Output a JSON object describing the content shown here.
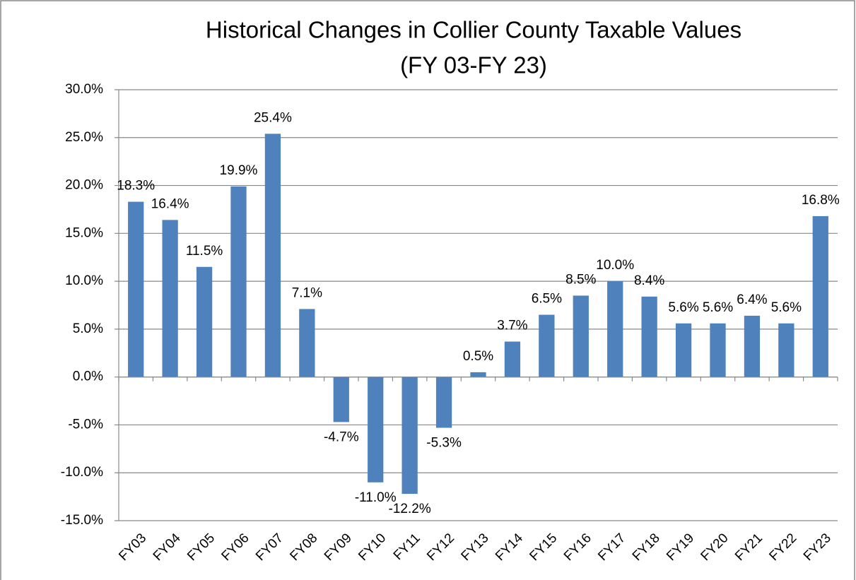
{
  "chart_data": {
    "type": "bar",
    "title": [
      "Historical Changes in Collier County Taxable Values",
      "(FY 03-FY 23)"
    ],
    "categories": [
      "FY03",
      "FY04",
      "FY05",
      "FY06",
      "FY07",
      "FY08",
      "FY09",
      "FY10",
      "FY11",
      "FY12",
      "FY13",
      "FY14",
      "FY15",
      "FY16",
      "FY17",
      "FY18",
      "FY19",
      "FY20",
      "FY21",
      "FY22",
      "FY23"
    ],
    "values": [
      18.3,
      16.4,
      11.5,
      19.9,
      25.4,
      7.1,
      -4.7,
      -11.0,
      -12.2,
      -5.3,
      0.5,
      3.7,
      6.5,
      8.5,
      10.0,
      8.4,
      5.6,
      5.6,
      6.4,
      5.6,
      16.8
    ],
    "value_labels": [
      "18.3%",
      "16.4%",
      "11.5%",
      "19.9%",
      "25.4%",
      "7.1%",
      "-4.7%",
      "-11.0%",
      "-12.2%",
      "-5.3%",
      "0.5%",
      "3.7%",
      "6.5%",
      "8.5%",
      "10.0%",
      "8.4%",
      "5.6%",
      "5.6%",
      "6.4%",
      "5.6%",
      "16.8%"
    ],
    "color": "#4f81bd",
    "ylim": [
      -15,
      30
    ],
    "yticks": [
      {
        "value": -15,
        "label": "-15.0%"
      },
      {
        "value": -10,
        "label": "-10.0%"
      },
      {
        "value": -5,
        "label": "-5.0%"
      },
      {
        "value": 0,
        "label": "0.0%"
      },
      {
        "value": 5,
        "label": "5.0%"
      },
      {
        "value": 10,
        "label": "10.0%"
      },
      {
        "value": 15,
        "label": "15.0%"
      },
      {
        "value": 20,
        "label": "20.0%"
      },
      {
        "value": 25,
        "label": "25.0%"
      },
      {
        "value": 30,
        "label": "30.0%"
      }
    ],
    "grid": true
  }
}
